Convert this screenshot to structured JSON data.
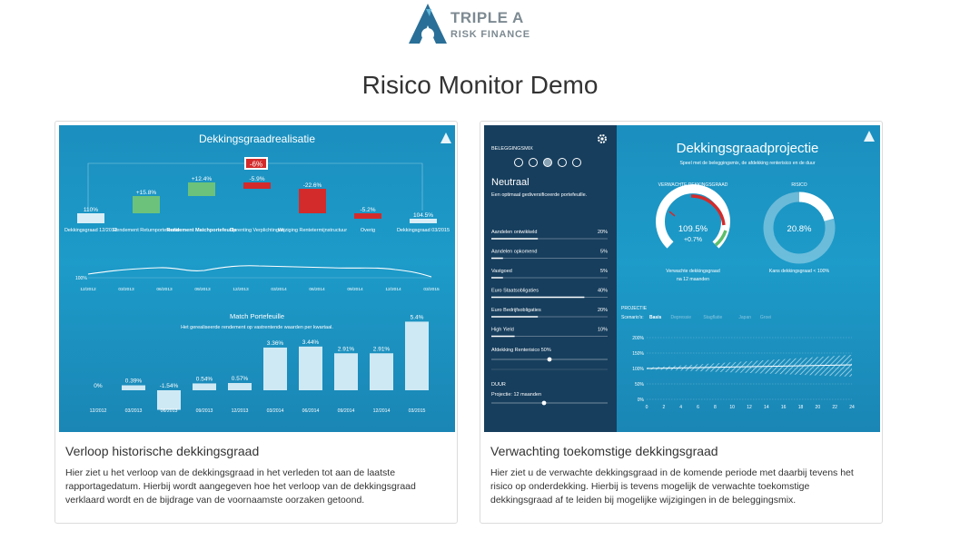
{
  "logo": {
    "line1": "TRIPLE A",
    "line2": "RISK FINANCE"
  },
  "page": {
    "title": "Risico Monitor Demo"
  },
  "colors": {
    "accent_red": "#d32b2b",
    "accent_green": "#5cbf6b",
    "navy": "#173e5d",
    "blue": "#1d9bc9"
  },
  "cards": [
    {
      "title": "Verloop historische dekkingsgraad",
      "text": "Hier ziet u het verloop van de dekkingsgraad in het verleden tot aan de laatste rapportagedatum. Hierbij wordt aangegeven hoe het verloop van de dekkingsgraad verklaard wordt en de bijdrage van de voornaamste oorzaken getoond.",
      "panel": {
        "title": "Dekkingsgraadrealisatie",
        "waterfall": [
          {
            "value": "110%",
            "label": "Dekkingsgraad 12/2012"
          },
          {
            "value": "+15.8%",
            "label": "Rendement Returnportefeuille"
          },
          {
            "value": "+12.4%",
            "label": "Rendement Matchportefeuille"
          },
          {
            "value": "-5.9%",
            "label": "Oprenting Verplichtingen",
            "badge": "-6%"
          },
          {
            "value": "-22.6%",
            "label": "Wijziging Rentetermijnstructuur"
          },
          {
            "value": "-5.2%",
            "label": "Overig"
          },
          {
            "value": "104.5%",
            "label": "Dekkingsgraad 03/2015"
          }
        ],
        "line_ref": "100%",
        "line_dates": [
          "12/2012",
          "03/2013",
          "06/2013",
          "09/2013",
          "12/2013",
          "03/2014",
          "06/2014",
          "09/2014",
          "12/2014",
          "03/2015"
        ],
        "match_title": "Match Portefeuille",
        "match_subtitle": "Het gerealiseerde rendement op vastrentende waarden per kwartaal.",
        "match_bars": [
          {
            "value": "0%",
            "date": "12/2012"
          },
          {
            "value": "0.39%",
            "date": "03/2013"
          },
          {
            "value": "-1.54%",
            "date": "06/2013"
          },
          {
            "value": "0.54%",
            "date": "09/2013"
          },
          {
            "value": "0.57%",
            "date": "12/2013"
          },
          {
            "value": "3.36%",
            "date": "03/2014"
          },
          {
            "value": "3.44%",
            "date": "06/2014"
          },
          {
            "value": "2.91%",
            "date": "09/2014"
          },
          {
            "value": "2.91%",
            "date": "12/2014"
          },
          {
            "value": "5.4%",
            "date": "03/2015"
          }
        ],
        "match_values": [
          0,
          0.39,
          -1.54,
          0.54,
          0.57,
          3.36,
          3.44,
          2.91,
          2.91,
          5.4
        ]
      }
    },
    {
      "title": "Verwachting toekomstige dekkingsgraad",
      "text": "Hier ziet u de verwachte dekkingsgraad in de komende periode met daarbij tevens het risico op onderdekking. Hierbij is tevens mogelijk de verwachte toekomstige dekkingsgraad af te leiden bij mogelijke wijzigingen in de beleggingsmix.",
      "panel": {
        "sidebar_header": "BELEGGINGSMIX",
        "mix_name": "Neutraal",
        "mix_desc": "Een optimaal gediversificeerde portefeuille.",
        "allocations": [
          {
            "label": "Aandelen ontwikkeld",
            "value": "20%"
          },
          {
            "label": "Aandelen opkomend",
            "value": "5%"
          },
          {
            "label": "Vastgoed",
            "value": "5%"
          },
          {
            "label": "Euro Staatsobligaties",
            "value": "40%"
          },
          {
            "label": "Euro Bedrijfsobligaties",
            "value": "20%"
          },
          {
            "label": "High Yield",
            "value": "10%"
          }
        ],
        "allocation_values": [
          20,
          5,
          5,
          40,
          20,
          10
        ],
        "hedge_label": "Afdekking Renterisico 50%",
        "hedge_value": 50,
        "duur_header": "DUUR",
        "duur_label": "Projectie: 12 maanden",
        "duur_value": 12,
        "title": "Dekkingsgraadprojectie",
        "subtitle": "Speel met de beleggingsmix, de afdekking renterisico en de duur",
        "gauge1_header": "VERWACHTE DEKKINGSGRAAD",
        "gauge1_value": "109.5%",
        "gauge1_delta": "+0.7%",
        "gauge1_caption1": "Verwachte dekkingsgraad",
        "gauge1_caption2": "na 12 maanden",
        "gauge2_header": "RISICO",
        "gauge2_value": "20.8%",
        "gauge2_fraction": 0.208,
        "gauge2_caption": "Kans dekkingsgraad < 100%",
        "proj_header": "PROJECTIE",
        "scenario_label": "Scenario's:",
        "scenarios": [
          "Basis",
          "Depressie",
          "Stagflatie",
          "Japan",
          "Groei"
        ],
        "proj_y_ticks": [
          "200%",
          "150%",
          "100%",
          "50%",
          "0%"
        ],
        "proj_x_ticks": [
          "0",
          "2",
          "4",
          "6",
          "8",
          "10",
          "12",
          "14",
          "16",
          "18",
          "20",
          "22",
          "24"
        ]
      }
    }
  ]
}
